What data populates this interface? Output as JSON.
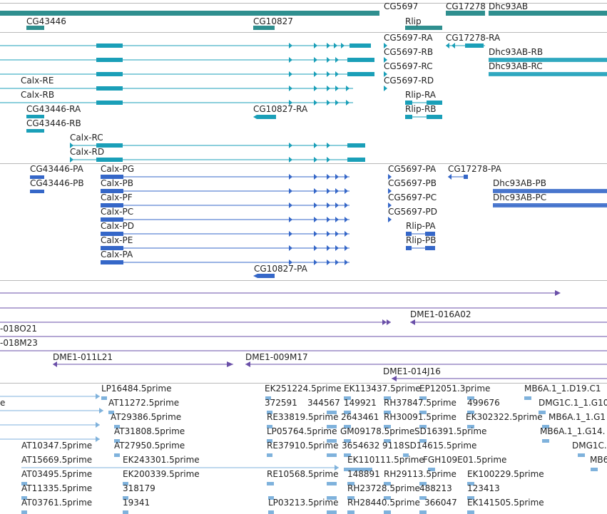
{
  "colors": {
    "gene_teal": "#2f8f8f",
    "transcript_cyan": "#1a9fb8",
    "transcript_blue": "#3567c8",
    "bac_purple": "#6a4fa8",
    "est_lightblue": "#7fb2dc",
    "separator": "#b9b9b9"
  },
  "tracks": {
    "genes": {
      "labels": [
        "CG43446",
        "CG10827",
        "CG5697",
        "Rlip",
        "CG17278",
        "Dhc93AB"
      ]
    },
    "transcripts_a": {
      "labels": [
        "CG5697-RA",
        "CG17278-RA",
        "CG5697-RB",
        "Dhc93AB-RB",
        "CG5697-RC",
        "Dhc93AB-RC",
        "Calx-RE",
        "CG5697-RD",
        "Calx-RB",
        "Rlip-RA",
        "CG43446-RA",
        "CG10827-RA",
        "Rlip-RB",
        "CG43446-RB",
        "Calx-RC",
        "Calx-RD"
      ]
    },
    "transcripts_b": {
      "labels": [
        "CG43446-PA",
        "Calx-PG",
        "CG5697-PA",
        "CG17278-PA",
        "CG43446-PB",
        "Calx-PB",
        "CG5697-PB",
        "Dhc93AB-PB",
        "Calx-PF",
        "CG5697-PC",
        "Dhc93AB-PC",
        "Calx-PC",
        "CG5697-PD",
        "Calx-PD",
        "Rlip-PA",
        "Calx-PE",
        "Rlip-PB",
        "Calx-PA",
        "CG10827-PA"
      ]
    },
    "bac": {
      "labels": [
        "DME1-016A02",
        "-018O21",
        "-018M23",
        "DME1-011L21",
        "DME1-009M17",
        "DME1-014J16"
      ]
    },
    "est": {
      "labels": [
        "LP16484.5prime",
        "EK251224.5prime",
        "EK113437.5prime",
        "EP12051.3prime",
        "MB6A.1_1.D19.C1",
        "e",
        "AT11272.5prime",
        "372591",
        "344567",
        "149921",
        "RH37847.5prime",
        "499676",
        "DMG1C.1_1.G10.C",
        "AT29386.5prime",
        "RE33819.5prime",
        "2643461",
        "RH30091.5prime",
        "EK302322.5prime",
        "MB6A.1_1.G1",
        "AT31808.5prime",
        "LP05764.5prime",
        "GM09178.5prime",
        "SD16391.5prime",
        "MB6A.1_1.G14.",
        "AT10347.5prime",
        "AT27950.5prime",
        "RE37910.5prime",
        "3654632",
        "9118",
        "SD14615.5prime",
        "DMG1C.",
        "AT15669.5prime",
        "EK243301.5prime",
        "EK110111.5prime",
        "FGH109E01.5prime",
        "MB6",
        "AT03495.5prime",
        "EK200339.5prime",
        "RE10568.5prime",
        "148891",
        "RH29113.5prime",
        "EK100229.5prime",
        "AT11335.5prime",
        "318179",
        "RH23728.5prime",
        "488213",
        "123413",
        "AT03761.5prime",
        "19341",
        "LP03213.5prime",
        "RH28440.5prime",
        "366047",
        "EK141505.5prime"
      ]
    }
  }
}
